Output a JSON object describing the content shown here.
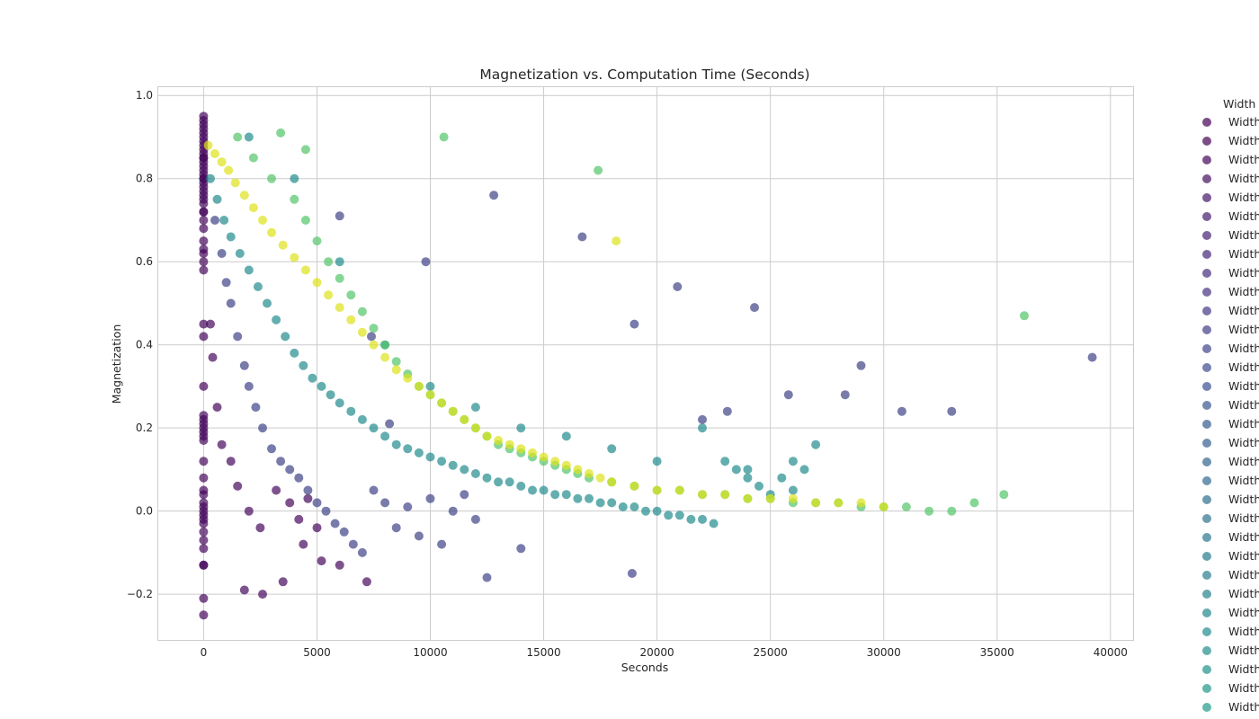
{
  "chart_data": {
    "type": "scatter",
    "title": "Magnetization vs. Computation Time (Seconds)",
    "xlabel": "Seconds",
    "ylabel": "Magnetization",
    "xlim": [
      -2000,
      41000
    ],
    "ylim": [
      -0.31,
      1.02
    ],
    "xticks": [
      0,
      5000,
      10000,
      15000,
      20000,
      25000,
      30000,
      35000,
      40000
    ],
    "xtick_labels": [
      "0",
      "5000",
      "10000",
      "15000",
      "20000",
      "25000",
      "30000",
      "35000",
      "40000"
    ],
    "yticks": [
      -0.2,
      0.0,
      0.2,
      0.4,
      0.6,
      0.8,
      1.0
    ],
    "ytick_labels": [
      "−0.2",
      "0.0",
      "0.2",
      "0.4",
      "0.6",
      "0.8",
      "1.0"
    ],
    "grid": true,
    "colormap": "viridis",
    "marker_alpha": 0.7,
    "legend": {
      "title": "Width",
      "placement": "outside-right",
      "entries": [
        "Width",
        "Width",
        "Width",
        "Width",
        "Width",
        "Width",
        "Width",
        "Width",
        "Width",
        "Width",
        "Width",
        "Width",
        "Width",
        "Width",
        "Width",
        "Width",
        "Width",
        "Width",
        "Width",
        "Width",
        "Width",
        "Width",
        "Width",
        "Width",
        "Width",
        "Width",
        "Width",
        "Width",
        "Width",
        "Width",
        "Width",
        "Width",
        "Width"
      ],
      "colors": [
        "#440154",
        "#440154",
        "#45075a",
        "#450e60",
        "#461566",
        "#461c6c",
        "#462272",
        "#462777",
        "#452d7c",
        "#443381",
        "#433885",
        "#413e88",
        "#3f448b",
        "#3d4a8d",
        "#3b508e",
        "#39558f",
        "#365a8f",
        "#345f8e",
        "#32648e",
        "#30698e",
        "#2e6d8e",
        "#2c728e",
        "#2a768e",
        "#287a8e",
        "#277e8e",
        "#25838e",
        "#23878e",
        "#218b8e",
        "#218f8d",
        "#20938c",
        "#1f978b",
        "#1f9b89",
        "#21a086"
      ]
    },
    "series": [
      {
        "width_rank": 0.05,
        "color": "#46085c",
        "x": [
          0,
          0,
          0,
          0,
          0,
          0,
          0,
          0,
          0,
          0,
          0,
          0,
          0,
          0,
          0,
          0,
          0,
          0,
          0,
          0,
          0,
          0,
          0,
          0,
          0,
          0,
          0,
          0,
          0,
          0,
          0,
          0,
          0,
          0,
          0,
          0,
          0,
          0,
          0,
          0,
          0,
          0,
          0,
          0,
          0,
          0,
          0,
          0,
          0,
          0,
          0,
          0,
          0,
          0,
          0,
          0,
          0,
          0,
          0,
          0,
          300,
          400,
          600,
          800,
          1200,
          1500,
          2000,
          2500,
          3200,
          3800,
          4200,
          4600,
          5000,
          6000,
          7200,
          2600,
          3500,
          1800,
          4400,
          5200
        ],
        "y": [
          0.95,
          0.94,
          0.93,
          0.92,
          0.91,
          0.9,
          0.89,
          0.88,
          0.87,
          0.86,
          0.85,
          0.84,
          0.83,
          0.82,
          0.81,
          0.8,
          0.79,
          0.78,
          0.77,
          0.76,
          0.75,
          0.74,
          0.72,
          0.7,
          0.65,
          0.63,
          0.6,
          0.45,
          0.42,
          0.3,
          0.23,
          0.22,
          0.21,
          0.2,
          0.19,
          0.18,
          0.17,
          0.12,
          0.08,
          0.05,
          0.04,
          0.02,
          0.01,
          0.0,
          -0.01,
          -0.02,
          -0.03,
          -0.05,
          -0.07,
          -0.09,
          -0.13,
          -0.13,
          -0.21,
          -0.25,
          0.85,
          0.8,
          0.72,
          0.68,
          0.62,
          0.58,
          0.45,
          0.37,
          0.25,
          0.16,
          0.12,
          0.06,
          0.0,
          -0.04,
          0.05,
          0.02,
          -0.02,
          0.03,
          -0.04,
          -0.13,
          -0.17,
          -0.2,
          -0.17,
          -0.19,
          -0.08,
          -0.12
        ]
      },
      {
        "width_rank": 0.3,
        "color": "#404387",
        "x": [
          500,
          800,
          1000,
          1200,
          1500,
          1800,
          2000,
          2300,
          2600,
          3000,
          3400,
          3800,
          4200,
          4600,
          5000,
          5400,
          5800,
          6200,
          6600,
          7000,
          7500,
          8000,
          8500,
          9000,
          9500,
          10000,
          10500,
          11000,
          11500,
          12000,
          12800,
          14000,
          16700,
          18900,
          19000,
          20900,
          22000,
          23100,
          24300,
          25800,
          28300,
          29000,
          30800,
          33000,
          39200,
          6000,
          7400,
          9800,
          12500,
          8200
        ],
        "y": [
          0.7,
          0.62,
          0.55,
          0.5,
          0.42,
          0.35,
          0.3,
          0.25,
          0.2,
          0.15,
          0.12,
          0.1,
          0.08,
          0.05,
          0.02,
          0.0,
          -0.03,
          -0.05,
          -0.08,
          -0.1,
          0.05,
          0.02,
          -0.04,
          0.01,
          -0.06,
          0.03,
          -0.08,
          0.0,
          0.04,
          -0.02,
          0.76,
          -0.09,
          0.66,
          -0.15,
          0.45,
          0.54,
          0.22,
          0.24,
          0.49,
          0.28,
          0.28,
          0.35,
          0.24,
          0.24,
          0.37,
          0.71,
          0.42,
          0.6,
          -0.16,
          0.21
        ]
      },
      {
        "width_rank": 0.55,
        "color": "#228b8d",
        "x": [
          300,
          600,
          900,
          1200,
          1600,
          2000,
          2400,
          2800,
          3200,
          3600,
          4000,
          4400,
          4800,
          5200,
          5600,
          6000,
          6500,
          7000,
          7500,
          8000,
          8500,
          9000,
          9500,
          10000,
          10500,
          11000,
          11500,
          12000,
          12500,
          13000,
          13500,
          14000,
          14500,
          15000,
          15500,
          16000,
          16500,
          17000,
          17500,
          18000,
          18500,
          19000,
          19500,
          20000,
          20500,
          21000,
          21500,
          22000,
          22500,
          23000,
          23500,
          24000,
          24500,
          25000,
          25500,
          26000,
          26500,
          27000,
          2000,
          4000,
          6000,
          8000,
          10000,
          12000,
          14000,
          16000,
          18000,
          20000,
          22000,
          24000,
          26000
        ],
        "y": [
          0.8,
          0.75,
          0.7,
          0.66,
          0.62,
          0.58,
          0.54,
          0.5,
          0.46,
          0.42,
          0.38,
          0.35,
          0.32,
          0.3,
          0.28,
          0.26,
          0.24,
          0.22,
          0.2,
          0.18,
          0.16,
          0.15,
          0.14,
          0.13,
          0.12,
          0.11,
          0.1,
          0.09,
          0.08,
          0.07,
          0.07,
          0.06,
          0.05,
          0.05,
          0.04,
          0.04,
          0.03,
          0.03,
          0.02,
          0.02,
          0.01,
          0.01,
          0.0,
          0.0,
          -0.01,
          -0.01,
          -0.02,
          -0.02,
          -0.03,
          0.12,
          0.1,
          0.08,
          0.06,
          0.04,
          0.08,
          0.05,
          0.1,
          0.16,
          0.9,
          0.8,
          0.6,
          0.4,
          0.3,
          0.25,
          0.2,
          0.18,
          0.15,
          0.12,
          0.2,
          0.1,
          0.12
        ]
      },
      {
        "width_rank": 0.75,
        "color": "#52c569",
        "x": [
          1500,
          2200,
          3000,
          3400,
          4000,
          4500,
          5000,
          5500,
          6000,
          6500,
          7000,
          7500,
          8000,
          8500,
          9000,
          9500,
          10000,
          10500,
          11000,
          11500,
          12000,
          12500,
          13000,
          13500,
          14000,
          14500,
          15000,
          15500,
          16000,
          16500,
          17000,
          18000,
          19000,
          20000,
          21000,
          22000,
          23000,
          24000,
          25000,
          26000,
          27000,
          28000,
          29000,
          30000,
          31000,
          32000,
          33000,
          34000,
          35300,
          36200,
          17400,
          10600,
          4500
        ],
        "y": [
          0.9,
          0.85,
          0.8,
          0.91,
          0.75,
          0.7,
          0.65,
          0.6,
          0.56,
          0.52,
          0.48,
          0.44,
          0.4,
          0.36,
          0.33,
          0.3,
          0.28,
          0.26,
          0.24,
          0.22,
          0.2,
          0.18,
          0.16,
          0.15,
          0.14,
          0.13,
          0.12,
          0.11,
          0.1,
          0.09,
          0.08,
          0.07,
          0.06,
          0.05,
          0.05,
          0.04,
          0.04,
          0.03,
          0.03,
          0.02,
          0.02,
          0.02,
          0.01,
          0.01,
          0.01,
          0.0,
          0.0,
          0.02,
          0.04,
          0.47,
          0.82,
          0.9,
          0.87
        ]
      },
      {
        "width_rank": 0.95,
        "color": "#dde318",
        "x": [
          200,
          500,
          800,
          1100,
          1400,
          1800,
          2200,
          2600,
          3000,
          3500,
          4000,
          4500,
          5000,
          5500,
          6000,
          6500,
          7000,
          7500,
          8000,
          8500,
          9000,
          9500,
          10000,
          10500,
          11000,
          11500,
          12000,
          12500,
          13000,
          13500,
          14000,
          14500,
          15000,
          15500,
          16000,
          16500,
          17000,
          17500,
          18000,
          18200,
          19000,
          20000,
          21000,
          22000,
          23000,
          24000,
          25000,
          26000,
          27000,
          28000,
          29000,
          30000
        ],
        "y": [
          0.88,
          0.86,
          0.84,
          0.82,
          0.79,
          0.76,
          0.73,
          0.7,
          0.67,
          0.64,
          0.61,
          0.58,
          0.55,
          0.52,
          0.49,
          0.46,
          0.43,
          0.4,
          0.37,
          0.34,
          0.32,
          0.3,
          0.28,
          0.26,
          0.24,
          0.22,
          0.2,
          0.18,
          0.17,
          0.16,
          0.15,
          0.14,
          0.13,
          0.12,
          0.11,
          0.1,
          0.09,
          0.08,
          0.07,
          0.65,
          0.06,
          0.05,
          0.05,
          0.04,
          0.04,
          0.03,
          0.03,
          0.03,
          0.02,
          0.02,
          0.02,
          0.01
        ]
      }
    ]
  }
}
